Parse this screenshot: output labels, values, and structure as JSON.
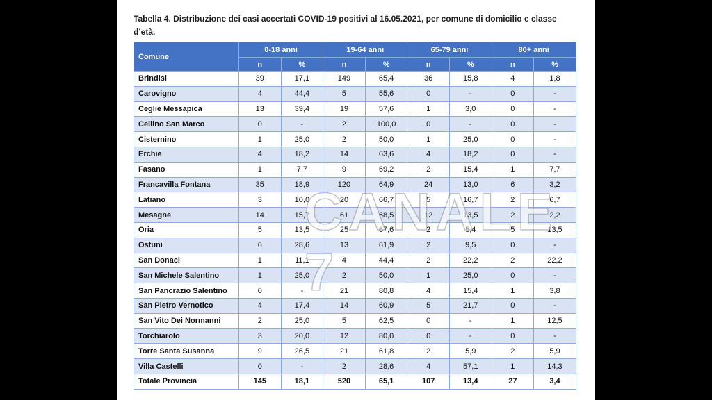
{
  "title": "Tabella 4. Distribuzione dei casi accertati COVID-19 positivi al 16.05.2021, per comune di domicilio e classe d’età.",
  "watermark": "CANALE 7",
  "table": {
    "header": {
      "comune": "Comune",
      "groups": [
        "0-18 anni",
        "19-64 anni",
        "65-79 anni",
        "80+ anni"
      ],
      "sub": [
        "n",
        "%",
        "n",
        "%",
        "n",
        "%",
        "n",
        "%"
      ]
    },
    "rows": [
      [
        "Brindisi",
        "39",
        "17,1",
        "149",
        "65,4",
        "36",
        "15,8",
        "4",
        "1,8"
      ],
      [
        "Carovigno",
        "4",
        "44,4",
        "5",
        "55,6",
        "0",
        "-",
        "0",
        "-"
      ],
      [
        "Ceglie Messapica",
        "13",
        "39,4",
        "19",
        "57,6",
        "1",
        "3,0",
        "0",
        "-"
      ],
      [
        "Cellino San Marco",
        "0",
        "-",
        "2",
        "100,0",
        "0",
        "-",
        "0",
        "-"
      ],
      [
        "Cisternino",
        "1",
        "25,0",
        "2",
        "50,0",
        "1",
        "25,0",
        "0",
        "-"
      ],
      [
        "Erchie",
        "4",
        "18,2",
        "14",
        "63,6",
        "4",
        "18,2",
        "0",
        "-"
      ],
      [
        "Fasano",
        "1",
        "7,7",
        "9",
        "69,2",
        "2",
        "15,4",
        "1",
        "7,7"
      ],
      [
        "Francavilla Fontana",
        "35",
        "18,9",
        "120",
        "64,9",
        "24",
        "13,0",
        "6",
        "3,2"
      ],
      [
        "Latiano",
        "3",
        "10,0",
        "20",
        "66,7",
        "5",
        "16,7",
        "2",
        "6,7"
      ],
      [
        "Mesagne",
        "14",
        "15,7",
        "61",
        "68,5",
        "12",
        "13,5",
        "2",
        "2,2"
      ],
      [
        "Oria",
        "5",
        "13,5",
        "25",
        "67,6",
        "2",
        "5,4",
        "5",
        "13,5"
      ],
      [
        "Ostuni",
        "6",
        "28,6",
        "13",
        "61,9",
        "2",
        "9,5",
        "0",
        "-"
      ],
      [
        "San Donaci",
        "1",
        "11,1",
        "4",
        "44,4",
        "2",
        "22,2",
        "2",
        "22,2"
      ],
      [
        "San Michele Salentino",
        "1",
        "25,0",
        "2",
        "50,0",
        "1",
        "25,0",
        "0",
        "-"
      ],
      [
        "San Pancrazio Salentino",
        "0",
        "-",
        "21",
        "80,8",
        "4",
        "15,4",
        "1",
        "3,8"
      ],
      [
        "San Pietro Vernotico",
        "4",
        "17,4",
        "14",
        "60,9",
        "5",
        "21,7",
        "0",
        "-"
      ],
      [
        "San Vito Dei Normanni",
        "2",
        "25,0",
        "5",
        "62,5",
        "0",
        "-",
        "1",
        "12,5"
      ],
      [
        "Torchiarolo",
        "3",
        "20,0",
        "12",
        "80,0",
        "0",
        "-",
        "0",
        "-"
      ],
      [
        "Torre Santa Susanna",
        "9",
        "26,5",
        "21",
        "61,8",
        "2",
        "5,9",
        "2",
        "5,9"
      ],
      [
        "Villa Castelli",
        "0",
        "-",
        "2",
        "28,6",
        "4",
        "57,1",
        "1",
        "14,3"
      ]
    ],
    "total": [
      "Totale Provincia",
      "145",
      "18,1",
      "520",
      "65,1",
      "107",
      "13,4",
      "27",
      "3,4"
    ]
  }
}
